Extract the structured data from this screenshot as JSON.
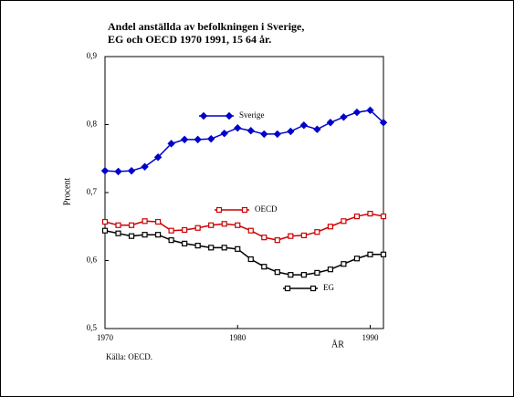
{
  "chart_data": {
    "type": "line",
    "title": "Andel anställda av befolkningen i Sverige,",
    "subtitle": "EG och OECD 1970 1991, 15 64 år.",
    "y_label": "Procent",
    "x_label": "ÅR",
    "source": "Källa: OECD.",
    "x": [
      1970,
      1971,
      1972,
      1973,
      1974,
      1975,
      1976,
      1977,
      1978,
      1979,
      1980,
      1981,
      1982,
      1983,
      1984,
      1985,
      1986,
      1987,
      1988,
      1989,
      1990,
      1991
    ],
    "series": [
      {
        "name": "Sverige",
        "color": "#0000cc",
        "marker": "diamond",
        "values": [
          0.732,
          0.731,
          0.732,
          0.738,
          0.752,
          0.772,
          0.778,
          0.778,
          0.779,
          0.787,
          0.795,
          0.791,
          0.786,
          0.786,
          0.79,
          0.799,
          0.793,
          0.803,
          0.811,
          0.818,
          0.821,
          0.803
        ]
      },
      {
        "name": "OECD",
        "color": "#cc0000",
        "marker": "square",
        "values": [
          0.657,
          0.652,
          0.652,
          0.658,
          0.657,
          0.644,
          0.645,
          0.648,
          0.652,
          0.654,
          0.652,
          0.644,
          0.634,
          0.63,
          0.636,
          0.637,
          0.642,
          0.65,
          0.658,
          0.665,
          0.669,
          0.665
        ]
      },
      {
        "name": "EG",
        "color": "#000000",
        "marker": "square",
        "values": [
          0.644,
          0.64,
          0.636,
          0.638,
          0.638,
          0.63,
          0.625,
          0.622,
          0.619,
          0.619,
          0.617,
          0.602,
          0.591,
          0.583,
          0.579,
          0.579,
          0.582,
          0.587,
          0.595,
          0.603,
          0.609,
          0.609
        ]
      }
    ],
    "xlim": [
      1970,
      1991
    ],
    "xticks": [
      1970,
      1980,
      1990
    ],
    "ylim": [
      0.5,
      0.9
    ],
    "yticks": [
      {
        "value": 0.5,
        "label": "0,5"
      },
      {
        "value": 0.6,
        "label": "0,6"
      },
      {
        "value": 0.7,
        "label": "0,7"
      },
      {
        "value": 0.8,
        "label": "0,8"
      },
      {
        "value": 0.9,
        "label": "0,9"
      }
    ],
    "grid": false
  }
}
